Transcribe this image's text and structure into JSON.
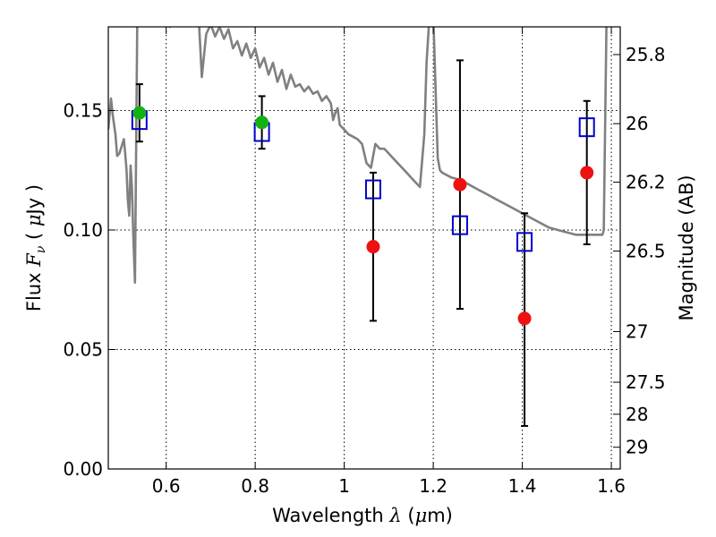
{
  "chart_data": {
    "type": "scatter",
    "xlabel_prefix": "Wavelength ",
    "xlabel_symbol": "λ",
    "xlabel_unit_open": " (",
    "xlabel_unit_mu": "μ",
    "xlabel_unit_rest": "m)",
    "ylabel_prefix": "Flux ",
    "ylabel_symbol": "F",
    "ylabel_sub": "ν",
    "ylabel_paren_open": " ( ",
    "ylabel_mu": "μ",
    "ylabel_unit_rest": "Jy )",
    "y2label": "Magnitude (AB)",
    "xlim": [
      0.47,
      1.62
    ],
    "ylim": [
      0.0,
      0.185
    ],
    "grid": "dotted",
    "xticks": [
      {
        "value": 0.6,
        "label": "0.6"
      },
      {
        "value": 0.8,
        "label": "0.8"
      },
      {
        "value": 1.0,
        "label": "1"
      },
      {
        "value": 1.2,
        "label": "1.2"
      },
      {
        "value": 1.4,
        "label": "1.4"
      },
      {
        "value": 1.6,
        "label": "1.6"
      }
    ],
    "yticks": [
      {
        "value": 0.0,
        "label": "0.00"
      },
      {
        "value": 0.05,
        "label": "0.05"
      },
      {
        "value": 0.1,
        "label": "0.10"
      },
      {
        "value": 0.15,
        "label": "0.15"
      }
    ],
    "magticks": [
      {
        "value": 0.1734,
        "label": "25.8"
      },
      {
        "value": 0.1445,
        "label": "26"
      },
      {
        "value": 0.12,
        "label": "26.2"
      },
      {
        "value": 0.0912,
        "label": "26.5"
      },
      {
        "value": 0.0575,
        "label": "27"
      },
      {
        "value": 0.0363,
        "label": "27.5"
      },
      {
        "value": 0.0229,
        "label": "28"
      },
      {
        "value": 0.0091,
        "label": "29"
      }
    ],
    "model_sed": {
      "name": "model SED",
      "color": "#808080",
      "x": [
        0.47,
        0.476,
        0.48,
        0.486,
        0.49,
        0.495,
        0.5,
        0.505,
        0.508,
        0.511,
        0.514,
        0.517,
        0.52,
        0.523,
        0.526,
        0.53,
        0.535,
        0.54,
        0.547,
        0.553,
        0.56,
        0.566,
        0.572,
        0.578,
        0.584,
        0.59,
        0.597,
        0.603,
        0.609,
        0.615,
        0.621,
        0.627,
        0.633,
        0.64,
        0.645,
        0.65,
        0.655,
        0.66,
        0.67,
        0.68,
        0.69,
        0.7,
        0.71,
        0.72,
        0.73,
        0.74,
        0.75,
        0.76,
        0.77,
        0.78,
        0.79,
        0.8,
        0.81,
        0.82,
        0.83,
        0.84,
        0.85,
        0.86,
        0.87,
        0.88,
        0.89,
        0.9,
        0.91,
        0.92,
        0.93,
        0.94,
        0.95,
        0.96,
        0.97,
        0.975,
        0.98,
        0.985,
        0.99,
        1.0,
        1.01,
        1.02,
        1.03,
        1.04,
        1.05,
        1.06,
        1.07,
        1.08,
        1.09,
        1.1,
        1.11,
        1.12,
        1.13,
        1.14,
        1.15,
        1.16,
        1.17,
        1.18,
        1.185,
        1.19,
        1.195,
        1.2,
        1.205,
        1.21,
        1.215,
        1.22,
        1.24,
        1.26,
        1.28,
        1.3,
        1.32,
        1.34,
        1.36,
        1.38,
        1.4,
        1.42,
        1.44,
        1.46,
        1.48,
        1.5,
        1.52,
        1.54,
        1.56,
        1.58,
        1.583,
        1.59
      ],
      "y": [
        0.142,
        0.155,
        0.148,
        0.14,
        0.131,
        0.132,
        0.135,
        0.138,
        0.132,
        0.125,
        0.112,
        0.106,
        0.127,
        0.118,
        0.098,
        0.078,
        0.185,
        0.2,
        0.2,
        0.2,
        0.2,
        0.2,
        0.2,
        0.2,
        0.2,
        0.195,
        0.2,
        0.188,
        0.185,
        0.2,
        0.2,
        0.2,
        0.2,
        0.2,
        0.2,
        0.2,
        0.2,
        0.2,
        0.2,
        0.164,
        0.182,
        0.186,
        0.181,
        0.185,
        0.18,
        0.184,
        0.176,
        0.179,
        0.173,
        0.178,
        0.172,
        0.176,
        0.168,
        0.172,
        0.165,
        0.17,
        0.162,
        0.167,
        0.159,
        0.165,
        0.16,
        0.161,
        0.158,
        0.16,
        0.157,
        0.158,
        0.154,
        0.156,
        0.153,
        0.146,
        0.149,
        0.151,
        0.144,
        0.142,
        0.14,
        0.139,
        0.138,
        0.136,
        0.128,
        0.126,
        0.136,
        0.134,
        0.134,
        0.132,
        0.13,
        0.128,
        0.126,
        0.124,
        0.122,
        0.12,
        0.118,
        0.14,
        0.17,
        0.185,
        0.2,
        0.19,
        0.16,
        0.13,
        0.125,
        0.124,
        0.122,
        0.121,
        0.119,
        0.117,
        0.115,
        0.113,
        0.111,
        0.109,
        0.107,
        0.105,
        0.103,
        0.101,
        0.1,
        0.099,
        0.098,
        0.098,
        0.098,
        0.098,
        0.1,
        0.2
      ]
    },
    "series": [
      {
        "name": "observed (green)",
        "color": "#13b213",
        "x": [
          0.54,
          0.815
        ],
        "y": [
          0.149,
          0.145
        ]
      },
      {
        "name": "observed (red)",
        "color": "#ee1111",
        "x": [
          1.065,
          1.26,
          1.405,
          1.545
        ],
        "y": [
          0.093,
          0.119,
          0.063,
          0.124
        ]
      },
      {
        "name": "model photometry",
        "color": "#0000cc",
        "marker": "open-square",
        "x": [
          0.54,
          0.815,
          1.065,
          1.26,
          1.405,
          1.545
        ],
        "y": [
          0.146,
          0.141,
          0.117,
          0.102,
          0.095,
          0.143
        ]
      }
    ],
    "errorbars": [
      {
        "x": 0.54,
        "low": 0.137,
        "high": 0.161
      },
      {
        "x": 0.815,
        "low": 0.134,
        "high": 0.156
      },
      {
        "x": 1.065,
        "low": 0.062,
        "high": 0.124
      },
      {
        "x": 1.26,
        "low": 0.067,
        "high": 0.171
      },
      {
        "x": 1.405,
        "low": 0.018,
        "high": 0.107
      },
      {
        "x": 1.545,
        "low": 0.094,
        "high": 0.154
      }
    ]
  }
}
